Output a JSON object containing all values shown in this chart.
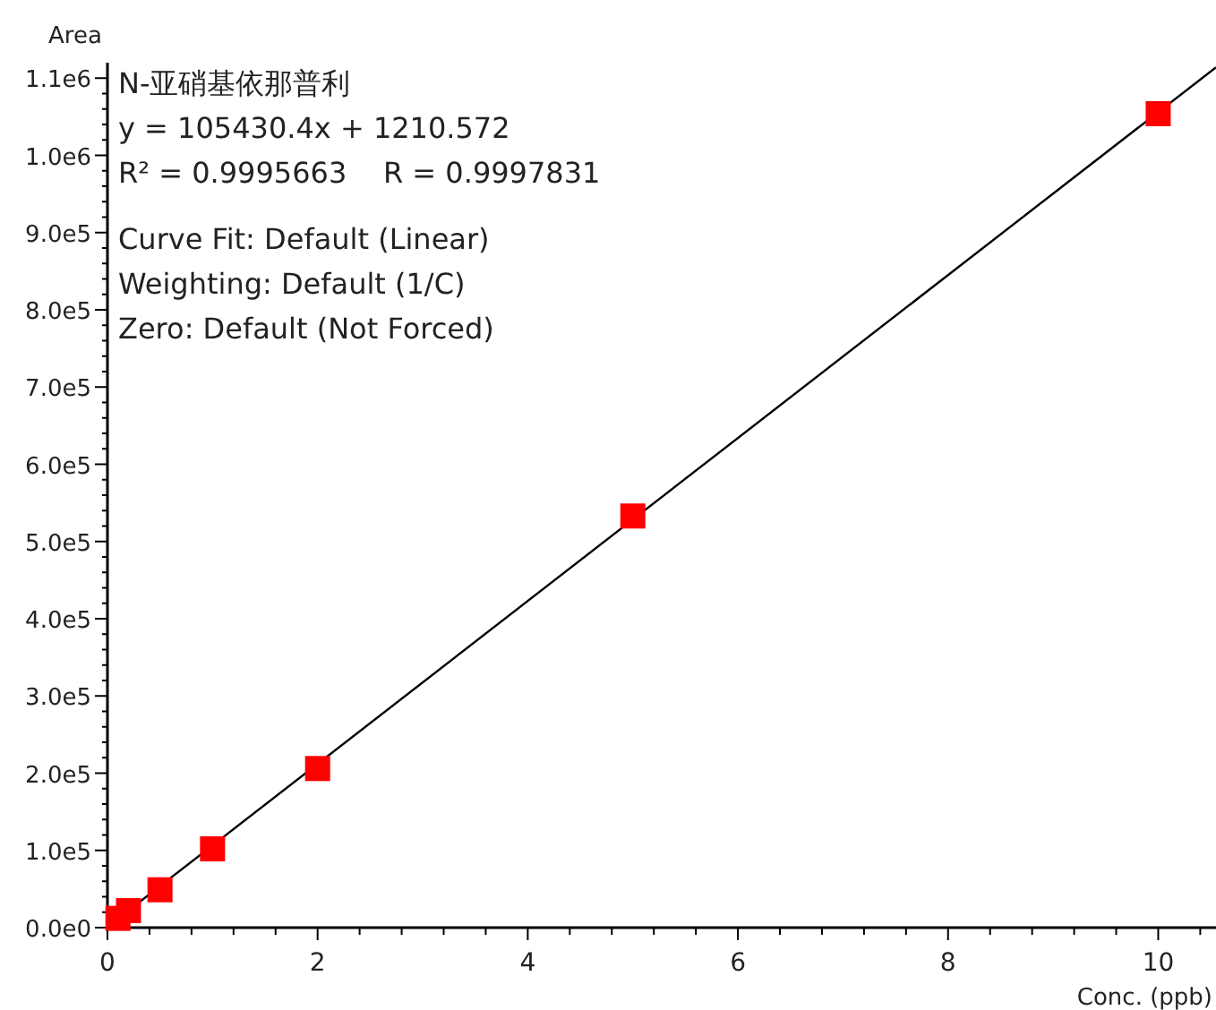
{
  "chart_data": {
    "type": "scatter",
    "xlabel": "Conc. (ppb)",
    "ylabel": "Area",
    "annotations": [
      "N-亚硝基依那普利",
      "y = 105430.4x + 1210.572",
      "R² = 0.9995663    R = 0.9997831",
      "Curve Fit: Default (Linear)",
      "Weighting: Default (1/C)",
      "Zero: Default (Not Forced)"
    ],
    "xlim": [
      0,
      10.55
    ],
    "xticks": [
      0,
      2,
      4,
      6,
      8,
      10
    ],
    "ylim": [
      0,
      1120000
    ],
    "yticks": [
      {
        "value": 0,
        "label": "0.0e0"
      },
      {
        "value": 100000,
        "label": "1.0e5"
      },
      {
        "value": 200000,
        "label": "2.0e5"
      },
      {
        "value": 300000,
        "label": "3.0e5"
      },
      {
        "value": 400000,
        "label": "4.0e5"
      },
      {
        "value": 500000,
        "label": "5.0e5"
      },
      {
        "value": 600000,
        "label": "6.0e5"
      },
      {
        "value": 700000,
        "label": "7.0e5"
      },
      {
        "value": 800000,
        "label": "8.0e5"
      },
      {
        "value": 900000,
        "label": "9.0e5"
      },
      {
        "value": 1000000,
        "label": "1.0e6"
      },
      {
        "value": 1100000,
        "label": "1.1e6"
      }
    ],
    "grid": false,
    "series": [
      {
        "type": "line",
        "color": "#000000",
        "marker": "none",
        "x": [
          0,
          10.55
        ],
        "values": [
          1000,
          1114000
        ]
      },
      {
        "color": "#ff0000",
        "marker": "square",
        "x": [
          0.1,
          0.2,
          0.5,
          1,
          2,
          5,
          10
        ],
        "values": [
          12000,
          22000,
          49000,
          102000,
          206000,
          533000,
          1054000
        ]
      }
    ]
  }
}
